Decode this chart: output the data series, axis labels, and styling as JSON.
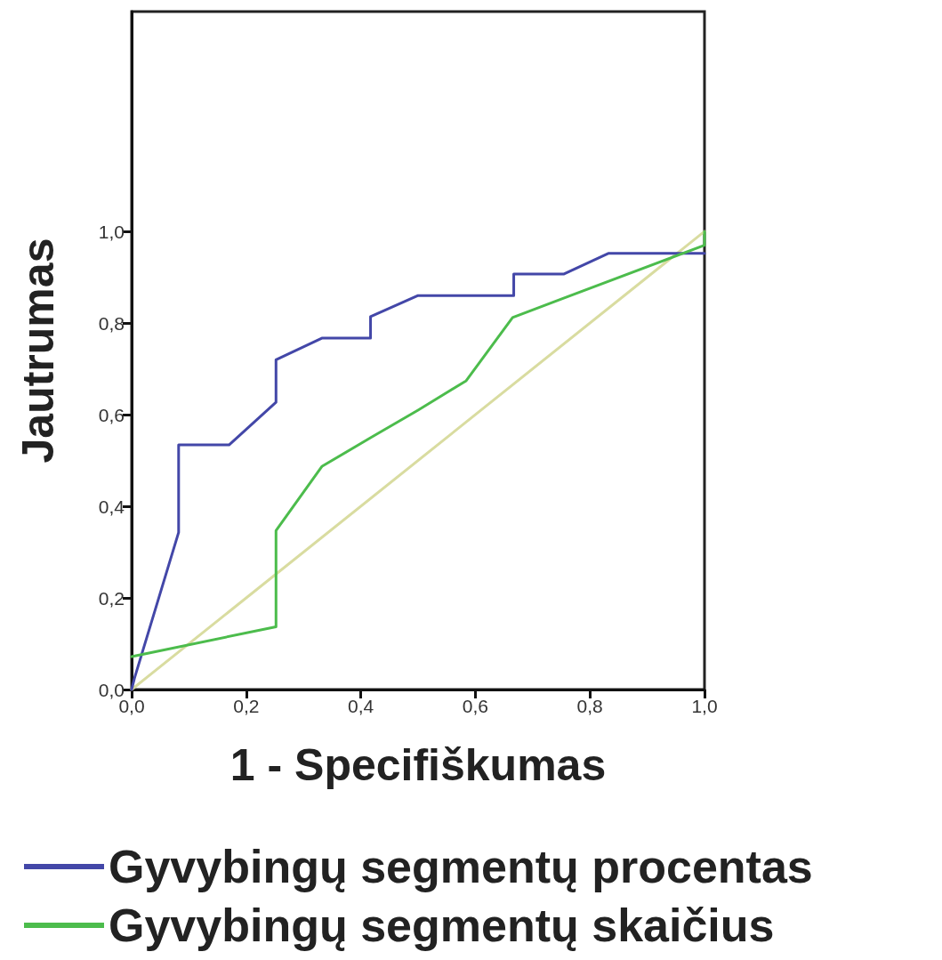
{
  "chart_data": {
    "type": "line",
    "xlabel": "1 - Specifiškumas",
    "ylabel": "Jautrumas",
    "xlim": [
      0,
      1
    ],
    "ylim": [
      0,
      1.48
    ],
    "xticks": [
      {
        "value": 0,
        "label": "0,0"
      },
      {
        "value": 0.2,
        "label": "0,2"
      },
      {
        "value": 0.4,
        "label": "0,4"
      },
      {
        "value": 0.6,
        "label": "0,6"
      },
      {
        "value": 0.8,
        "label": "0,8"
      },
      {
        "value": 1,
        "label": "1,0"
      }
    ],
    "yticks": [
      {
        "value": 0,
        "label": "0,0"
      },
      {
        "value": 0.2,
        "label": "0,2"
      },
      {
        "value": 0.4,
        "label": "0,4"
      },
      {
        "value": 0.6,
        "label": "0,6"
      },
      {
        "value": 0.8,
        "label": "0,8"
      },
      {
        "value": 1,
        "label": "1,0"
      }
    ],
    "grid": false,
    "legend": "bottom",
    "marker": "none",
    "line_style": "solid",
    "series": [
      {
        "name": "Gyvybingų segmentų procentas",
        "color": "#4347a8",
        "x": [
          0,
          0.005,
          0.082,
          0.082,
          0.17,
          0.252,
          0.252,
          0.332,
          0.417,
          0.417,
          0.5,
          0.667,
          0.667,
          0.754,
          0.832,
          1
        ],
        "values": [
          0,
          0.025,
          0.343,
          0.534,
          0.534,
          0.627,
          0.72,
          0.767,
          0.767,
          0.814,
          0.86,
          0.86,
          0.907,
          0.907,
          0.952,
          0.952
        ]
      },
      {
        "name": "Gyvybingų segmentų skaičius",
        "color": "#4cbc4c",
        "x": [
          0,
          0.252,
          0.252,
          0.332,
          0.419,
          0.5,
          0.584,
          0.665,
          0.749,
          1,
          1
        ],
        "values": [
          0.072,
          0.137,
          0.347,
          0.487,
          0.551,
          0.61,
          0.674,
          0.812,
          0.852,
          0.97,
          1
        ]
      },
      {
        "color": "#d9dca0",
        "x": [
          0,
          1
        ],
        "values": [
          0,
          1
        ]
      }
    ]
  }
}
